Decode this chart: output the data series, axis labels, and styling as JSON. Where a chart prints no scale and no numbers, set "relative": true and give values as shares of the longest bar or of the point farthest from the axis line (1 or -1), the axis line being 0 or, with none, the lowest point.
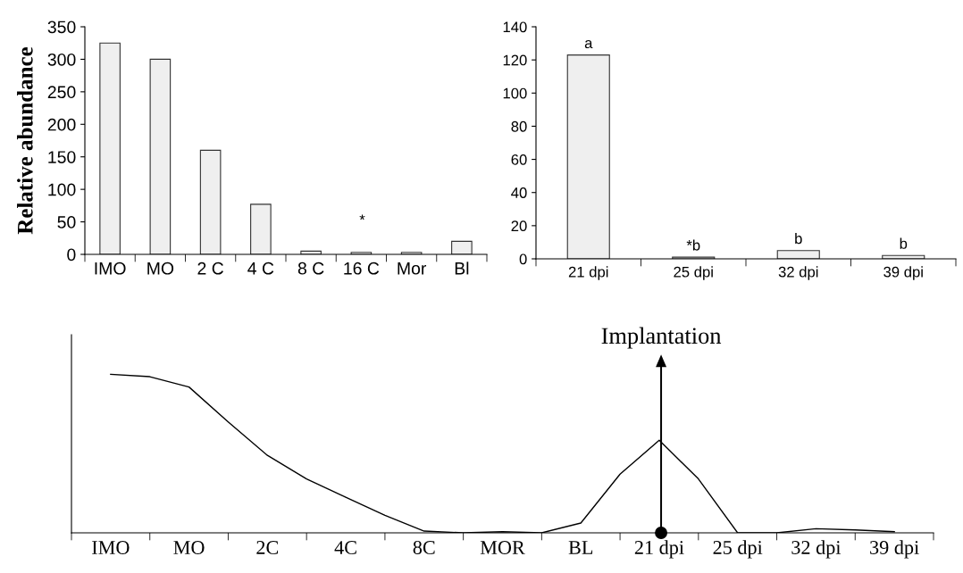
{
  "chart_data": [
    {
      "type": "bar",
      "ylabel": "Relative abundance",
      "categories": [
        "IMO",
        "MO",
        "2 C",
        "4 C",
        "8 C",
        "16 C",
        "Mor",
        "Bl"
      ],
      "values": [
        325,
        300,
        160,
        77,
        5,
        3,
        3,
        20
      ],
      "color": "#efefef",
      "ylim": [
        0,
        350
      ],
      "yticks": [
        0,
        50,
        100,
        150,
        200,
        250,
        300,
        350
      ],
      "annotations": [
        "*"
      ],
      "grid": false
    },
    {
      "type": "bar",
      "categories": [
        "21 dpi",
        "25 dpi",
        "32 dpi",
        "39 dpi"
      ],
      "values": [
        123,
        1,
        5,
        2
      ],
      "value_labels": [
        "a",
        "*b",
        "b",
        "b"
      ],
      "color": "#efefef",
      "ylim": [
        0,
        140
      ],
      "yticks": [
        0,
        20,
        40,
        60,
        80,
        100,
        120,
        140
      ],
      "grid": false
    },
    {
      "type": "line",
      "relative": true,
      "tick_labels": "x",
      "categories": [
        "IMO",
        null,
        "MO",
        null,
        "2C",
        null,
        "4C",
        null,
        "8C",
        null,
        "MOR",
        null,
        "BL",
        null,
        "21 dpi",
        null,
        "25 dpi",
        null,
        "32 dpi",
        null,
        "39 dpi"
      ],
      "series": [
        {
          "color": "#000000",
          "values": [
            1.0,
            0.985,
            0.92,
            0.7,
            0.489,
            0.34,
            0.225,
            0.11,
            0.011,
            0,
            0.007,
            0,
            0.062,
            0.37,
            0.584,
            0.34,
            0,
            0,
            0.026,
            0.018,
            0.007
          ]
        }
      ],
      "marker": "none",
      "line_style": "solid",
      "grid": false,
      "annotations": [
        "Implantation"
      ]
    }
  ]
}
